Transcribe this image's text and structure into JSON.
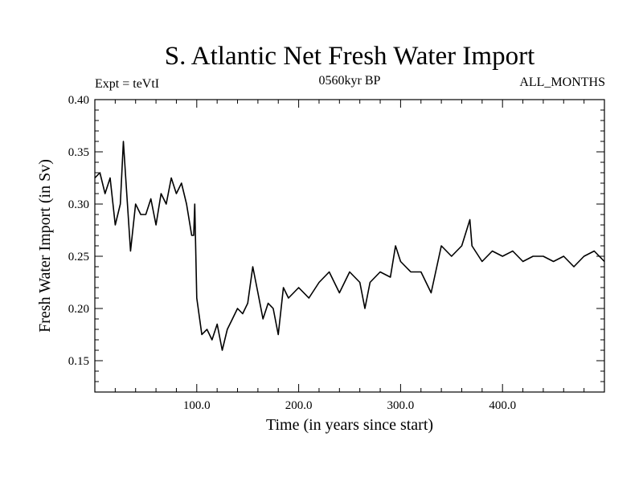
{
  "chart_data": {
    "type": "line",
    "title": "S. Atlantic Net Fresh Water Import",
    "subtitle": "0560kyr BP",
    "left_label": "Expt = teVtI",
    "right_label": "ALL_MONTHS",
    "xlabel": "Time (in years since start)",
    "ylabel": "Fresh Water Import (in Sv)",
    "xlim": [
      0,
      500
    ],
    "ylim": [
      0.12,
      0.4
    ],
    "x_ticks": [
      100,
      200,
      300,
      400
    ],
    "x_tick_labels": [
      "100.0",
      "200.0",
      "300.0",
      "400.0"
    ],
    "y_ticks": [
      0.15,
      0.2,
      0.25,
      0.3,
      0.35,
      0.4
    ],
    "y_tick_labels": [
      "0.15",
      "0.20",
      "0.25",
      "0.30",
      "0.35",
      "0.40"
    ],
    "grid": false,
    "series": [
      {
        "color": "#000000",
        "x": [
          0,
          5,
          10,
          15,
          20,
          25,
          28,
          30,
          35,
          40,
          45,
          50,
          55,
          60,
          65,
          70,
          75,
          80,
          85,
          90,
          95,
          97,
          98,
          100,
          105,
          110,
          115,
          120,
          125,
          130,
          135,
          140,
          145,
          150,
          155,
          160,
          165,
          170,
          175,
          180,
          185,
          190,
          195,
          200,
          210,
          220,
          230,
          240,
          250,
          260,
          265,
          270,
          280,
          290,
          295,
          300,
          310,
          320,
          330,
          340,
          350,
          360,
          368,
          370,
          380,
          390,
          400,
          410,
          420,
          430,
          440,
          450,
          460,
          470,
          480,
          490,
          500
        ],
        "y": [
          0.325,
          0.33,
          0.31,
          0.325,
          0.28,
          0.3,
          0.36,
          0.33,
          0.255,
          0.3,
          0.29,
          0.29,
          0.305,
          0.28,
          0.31,
          0.3,
          0.325,
          0.31,
          0.32,
          0.3,
          0.27,
          0.27,
          0.3,
          0.21,
          0.175,
          0.18,
          0.17,
          0.185,
          0.16,
          0.18,
          0.19,
          0.2,
          0.195,
          0.205,
          0.24,
          0.215,
          0.19,
          0.205,
          0.2,
          0.175,
          0.22,
          0.21,
          0.215,
          0.22,
          0.21,
          0.225,
          0.235,
          0.215,
          0.235,
          0.225,
          0.2,
          0.225,
          0.235,
          0.23,
          0.26,
          0.245,
          0.235,
          0.235,
          0.215,
          0.26,
          0.25,
          0.26,
          0.285,
          0.26,
          0.245,
          0.255,
          0.25,
          0.255,
          0.245,
          0.25,
          0.25,
          0.245,
          0.25,
          0.24,
          0.25,
          0.255,
          0.245
        ]
      }
    ]
  }
}
